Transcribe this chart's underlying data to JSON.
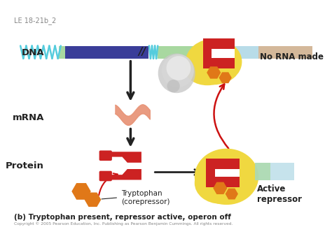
{
  "title": "LE 18-21b_2",
  "subtitle": "(b) Tryptophan present, repressor active, operon off",
  "copyright": "Copyright © 2005 Pearson Education, Inc. Publishing as Pearson Benjamin Cummings. All rights reserved.",
  "bg_color": "#ffffff",
  "dna_label": "DNA",
  "mrna_label": "mRNA",
  "protein_label": "Protein",
  "no_rna_label": "No RNA made",
  "active_repressor_label": "Active\nrepressor",
  "tryptophan_label": "Tryptophan\n(corepressor)",
  "dna_helix_color": "#55ccdd",
  "dna_dark_block_color": "#3a3d99",
  "dna_green_block_color": "#a8d8a0",
  "dna_light_blue_color": "#b8dce8",
  "dna_light_peach_color": "#d4b89a",
  "mrna_color": "#e8967a",
  "protein_red_color": "#cc2222",
  "tryptophan_orange_color": "#e07818",
  "yellow_blob_color": "#f0d840",
  "white_blob_color": "#d8d8d8",
  "arrow_black": "#222222",
  "arrow_red": "#cc1111"
}
